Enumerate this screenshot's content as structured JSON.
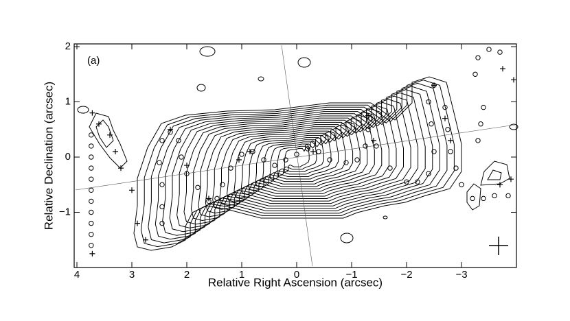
{
  "chart_data": {
    "type": "contour",
    "xlabel": "Relative Right Ascension (arcsec)",
    "ylabel": "Relative Declination (arcsec)",
    "annotation": "(a)",
    "xlim": [
      4.05,
      -4.0
    ],
    "ylim": [
      -2.0,
      2.05
    ],
    "xticks": [
      4,
      3,
      2,
      1,
      0,
      {
        "value": -1,
        "label": "−1"
      },
      {
        "value": -2,
        "label": "−2"
      },
      {
        "value": -3,
        "label": "−3"
      }
    ],
    "yticks": [
      {
        "value": -1,
        "label": "−1"
      },
      0,
      1,
      2
    ],
    "color": "#000000",
    "series": [
      {
        "marker": "circle",
        "x": [
          3.74,
          3.74,
          3.74,
          3.74,
          3.74,
          3.74,
          3.74,
          3.74,
          3.74,
          3.74,
          3.74,
          2.45,
          2.45,
          2.45,
          2.5,
          2.45,
          2.3,
          2.15,
          2.1,
          2.0,
          1.8,
          1.6,
          1.45,
          1.35,
          1.2,
          1.0,
          0.8,
          0.6,
          0.4,
          0.2,
          0,
          -0.2,
          -0.4,
          -0.6,
          -0.9,
          -1.1,
          -1.25,
          -1.3,
          -1.35,
          -1.45,
          -1.7,
          -2.0,
          -2.2,
          -2.4,
          -2.5,
          -2.45,
          -2.4,
          -2.5,
          -2.7,
          -2.75,
          -2.8,
          -2.9,
          -3.0,
          -3.2,
          -3.4,
          -3.6,
          -3.85,
          -3.25,
          -3.3,
          -3.5,
          -3.7,
          -3.4,
          -3.35,
          -3.3
        ],
        "y": [
          0.4,
          0.2,
          0.0,
          -0.2,
          -0.4,
          -0.6,
          -0.8,
          -1.0,
          -1.2,
          -1.4,
          -1.6,
          -1.2,
          -0.9,
          -0.5,
          -0.1,
          0.3,
          0.45,
          0.3,
          0.0,
          -0.3,
          -0.55,
          -0.8,
          -0.75,
          -0.5,
          -0.2,
          0.05,
          0.1,
          -0.05,
          -0.15,
          -0.05,
          0.05,
          0.15,
          0.1,
          -0.05,
          -0.1,
          -0.05,
          0.2,
          0.5,
          0.7,
          0.2,
          -0.2,
          -0.45,
          -0.45,
          -0.3,
          0.1,
          0.6,
          1.0,
          1.3,
          0.9,
          0.5,
          0.1,
          -0.2,
          -0.5,
          -0.75,
          -0.75,
          -0.7,
          -0.7,
          1.5,
          1.8,
          1.95,
          1.9,
          0.9,
          0.6,
          0.3
        ]
      },
      {
        "marker": "plus",
        "x": [
          3.72,
          3.6,
          3.4,
          3.3,
          3.2,
          3.0,
          2.9,
          2.75,
          2.3,
          2.0,
          1.6,
          1.05,
          0.85,
          -0.3,
          -1.3,
          -1.4,
          -2.5,
          -2.7,
          -2.8,
          -3.75,
          -3.95,
          -3.9,
          -3.7,
          3.72
        ],
        "y": [
          0.8,
          0.6,
          0.4,
          0.1,
          -0.2,
          -0.6,
          -1.2,
          -1.5,
          0.5,
          -0.15,
          -0.75,
          -0.05,
          0.1,
          0.1,
          0.75,
          0.3,
          1.3,
          0.7,
          0.3,
          1.6,
          1.4,
          -0.4,
          -0.5,
          -1.75
        ]
      }
    ]
  }
}
